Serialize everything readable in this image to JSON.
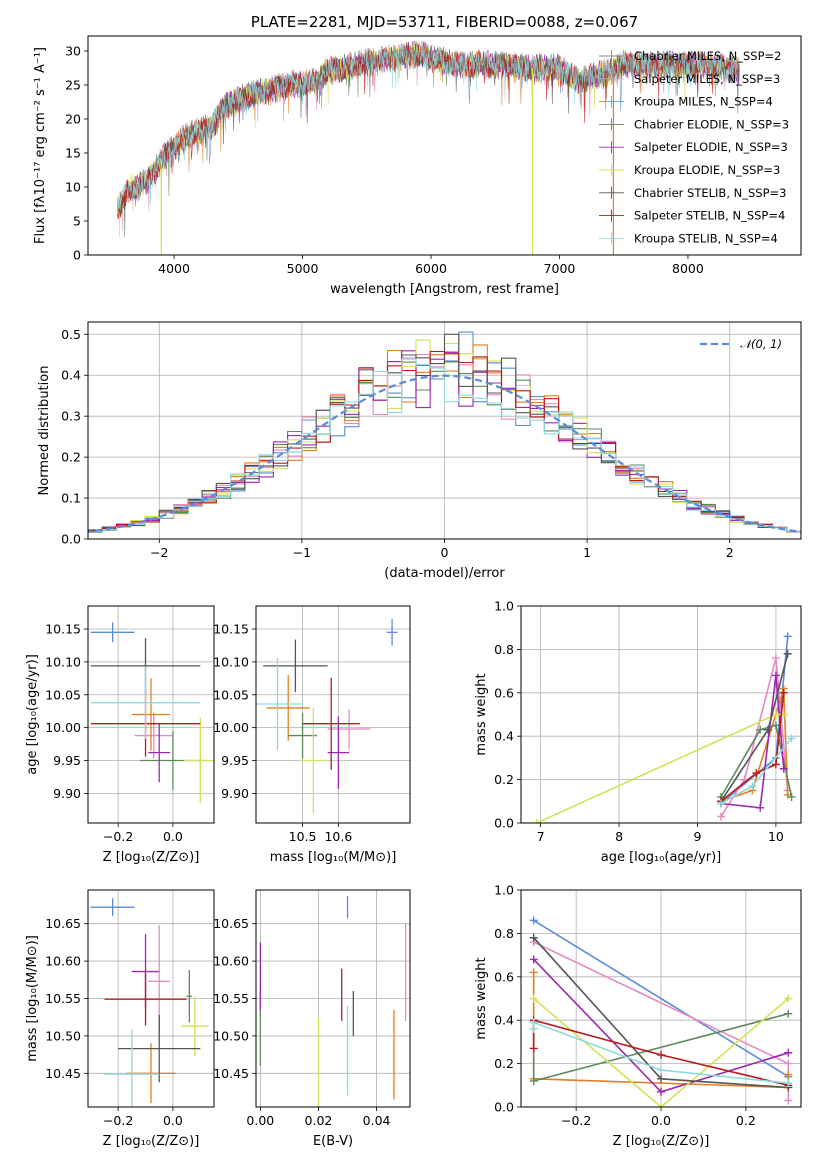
{
  "colors": [
    "#5b8bd9",
    "#e58ac3",
    "#e67e22",
    "#5c8a5c",
    "#9c27b0",
    "#d4e157",
    "#555555",
    "#b71c1c",
    "#8dd9e0"
  ],
  "legend_gray_colors": [
    "#888888",
    "#b8a8cc",
    "#e67e22",
    "#5c8a5c",
    "#9c27b0",
    "#d4e157",
    "#555555",
    "#b71c1c",
    "#8dd9e0"
  ],
  "chart_data": [
    {
      "id": "spectrum",
      "type": "line",
      "title": "PLATE=2281, MJD=53711, FIBERID=0088, z=0.067",
      "xlabel": "wavelength [Angstrom, rest frame]",
      "ylabel": "Flux [fλ10⁻¹⁷ erg cm⁻² s⁻¹ A⁻¹]",
      "xlim": [
        3330,
        8880
      ],
      "ylim": [
        0,
        32.2
      ],
      "xticks": [
        4000,
        5000,
        6000,
        7000,
        8000
      ],
      "yticks": [
        0,
        5,
        10,
        15,
        20,
        25,
        30
      ],
      "grid": false,
      "legend_position": "upper right",
      "series": [
        {
          "name": "Chabrier MILES, N_SSP=2"
        },
        {
          "name": "Salpeter MILES, N_SSP=3"
        },
        {
          "name": "Kroupa MILES, N_SSP=4"
        },
        {
          "name": "Chabrier ELODIE, N_SSP=3"
        },
        {
          "name": "Salpeter ELODIE, N_SSP=3"
        },
        {
          "name": "Kroupa ELODIE, N_SSP=3"
        },
        {
          "name": "Chabrier STELIB, N_SSP=3"
        },
        {
          "name": "Salpeter STELIB, N_SSP=4"
        },
        {
          "name": "Kroupa STELIB, N_SSP=4"
        }
      ],
      "continuum": [
        [
          3560,
          6.5
        ],
        [
          3650,
          9.5
        ],
        [
          3800,
          11
        ],
        [
          3900,
          14
        ],
        [
          4000,
          16
        ],
        [
          4150,
          18
        ],
        [
          4300,
          19
        ],
        [
          4400,
          22
        ],
        [
          4600,
          23.5
        ],
        [
          4900,
          25
        ],
        [
          5100,
          25.5
        ],
        [
          5200,
          27
        ],
        [
          5400,
          28
        ],
        [
          5700,
          29
        ],
        [
          5900,
          29.5
        ],
        [
          6200,
          28
        ],
        [
          6500,
          28
        ],
        [
          6800,
          27.5
        ],
        [
          7000,
          27.5
        ],
        [
          7150,
          25.5
        ],
        [
          7400,
          27
        ],
        [
          7500,
          28
        ],
        [
          7700,
          28
        ],
        [
          8000,
          28
        ],
        [
          8200,
          28
        ],
        [
          8400,
          27
        ]
      ],
      "spikes": [
        [
          3900,
          0
        ],
        [
          6790,
          0
        ],
        [
          7420,
          0
        ]
      ]
    },
    {
      "id": "residuals",
      "type": "histogram",
      "xlabel": "(data-model)/error",
      "ylabel": "Normed distribution",
      "xlim": [
        -2.5,
        2.5
      ],
      "ylim": [
        0,
        0.53
      ],
      "xticks": [
        -2,
        -1,
        0,
        1,
        2
      ],
      "xtick_labels": [
        "−2",
        "−1",
        "0",
        "1",
        "2"
      ],
      "yticks": [
        0,
        0.1,
        0.2,
        0.3,
        0.4,
        0.5
      ],
      "ytick_labels": [
        "0.0",
        "0.1",
        "0.2",
        "0.3",
        "0.4",
        "0.5"
      ],
      "grid": true,
      "bin_width": 0.1,
      "legend": "𝒩(0, 1)",
      "legend_position": "upper right",
      "reference_curve": "normal(0,1), dashed"
    },
    {
      "id": "age_vs_Z",
      "type": "scatter",
      "xlabel": "Z [log₁₀(Z/Z⊙)]",
      "ylabel": "age  [log₁₀(age/yr)]",
      "xlim": [
        -0.31,
        0.15
      ],
      "ylim": [
        9.855,
        10.185
      ],
      "xticks": [
        -0.2,
        0.0
      ],
      "xtick_labels": [
        "−0.2",
        "0.0"
      ],
      "yticks": [
        9.9,
        9.95,
        10.0,
        10.05,
        10.1,
        10.15
      ],
      "ytick_labels": [
        "9.90",
        "9.95",
        "10.00",
        "10.05",
        "10.10",
        "10.15"
      ],
      "grid": true,
      "points": [
        {
          "x": -0.22,
          "xerr": 0.08,
          "y": 10.145,
          "yerr": 0.015
        },
        {
          "x": -0.07,
          "xerr": 0.07,
          "y": 9.988,
          "yerr": 0.035
        },
        {
          "x": -0.08,
          "xerr": 0.07,
          "y": 10.02,
          "yerr": 0.055
        },
        {
          "x": 0.0,
          "xerr": 0.12,
          "y": 9.95,
          "yerr": 0.045
        },
        {
          "x": -0.05,
          "xerr": 0.04,
          "y": 9.962,
          "yerr": 0.045
        },
        {
          "x": 0.1,
          "xerr": 0.06,
          "y": 9.95,
          "yerr": 0.065
        },
        {
          "x": -0.1,
          "xerr": 0.2,
          "y": 10.094,
          "yerr": 0.042
        },
        {
          "x": -0.1,
          "xerr": 0.2,
          "y": 10.006,
          "yerr": 0.05
        },
        {
          "x": -0.1,
          "xerr": 0.2,
          "y": 10.038,
          "yerr": 0.055
        }
      ]
    },
    {
      "id": "age_vs_mass",
      "type": "scatter",
      "xlabel": "mass [log₁₀(M/M⊙)]",
      "ylabel": "",
      "xlim": [
        10.37,
        10.8
      ],
      "ylim": [
        9.855,
        10.185
      ],
      "xticks": [
        10.5,
        10.6
      ],
      "xtick_labels": [
        "10.5",
        "10.6"
      ],
      "yticks": [
        9.9,
        9.95,
        10.0,
        10.05,
        10.1,
        10.15
      ],
      "ytick_labels": [
        "9.90",
        "9.95",
        "10.00",
        "10.05",
        "10.10",
        "10.15"
      ],
      "grid": true,
      "points": [
        {
          "x": 10.75,
          "xerr": 0.015,
          "y": 10.145,
          "yerr": 0.02
        },
        {
          "x": 10.63,
          "xerr": 0.06,
          "y": 9.998,
          "yerr": 0.03
        },
        {
          "x": 10.46,
          "xerr": 0.06,
          "y": 10.03,
          "yerr": 0.05
        },
        {
          "x": 10.5,
          "xerr": 0.04,
          "y": 9.988,
          "yerr": 0.035
        },
        {
          "x": 10.6,
          "xerr": 0.03,
          "y": 9.962,
          "yerr": 0.055
        },
        {
          "x": 10.53,
          "xerr": 0.04,
          "y": 9.95,
          "yerr": 0.08
        },
        {
          "x": 10.48,
          "xerr": 0.09,
          "y": 10.094,
          "yerr": 0.04
        },
        {
          "x": 10.58,
          "xerr": 0.08,
          "y": 10.006,
          "yerr": 0.07
        },
        {
          "x": 10.43,
          "xerr": 0.07,
          "y": 10.036,
          "yerr": 0.07
        }
      ]
    },
    {
      "id": "massweight_vs_age",
      "type": "line",
      "xlabel": "age  [log₁₀(age/yr)]",
      "ylabel": "mass weight",
      "xlim": [
        6.75,
        10.32
      ],
      "ylim": [
        0,
        1
      ],
      "xticks": [
        7,
        8,
        9,
        10
      ],
      "yticks": [
        0,
        0.2,
        0.4,
        0.6,
        0.8,
        1.0
      ],
      "ytick_labels": [
        "0.0",
        "0.2",
        "0.4",
        "0.6",
        "0.8",
        "1.0"
      ],
      "grid": true,
      "series": [
        {
          "x": [
            9.3,
            10.0,
            10.15
          ],
          "y": [
            0.09,
            0.3,
            0.86
          ]
        },
        {
          "x": [
            9.3,
            9.6,
            10.0,
            10.15
          ],
          "y": [
            0.03,
            0.2,
            0.76,
            0.15
          ]
        },
        {
          "x": [
            9.3,
            9.7,
            10.1,
            10.15
          ],
          "y": [
            0.1,
            0.15,
            0.62,
            0.13
          ]
        },
        {
          "x": [
            9.3,
            9.8,
            10.0,
            10.2
          ],
          "y": [
            0.12,
            0.43,
            0.45,
            0.12
          ]
        },
        {
          "x": [
            9.3,
            9.8,
            10.0,
            10.1
          ],
          "y": [
            0.09,
            0.07,
            0.68,
            0.25
          ]
        },
        {
          "x": [
            6.95,
            10.0,
            10.1
          ],
          "y": [
            0.0,
            0.5,
            0.5
          ]
        },
        {
          "x": [
            9.3,
            9.9,
            10.15
          ],
          "y": [
            0.1,
            0.43,
            0.78
          ]
        },
        {
          "x": [
            9.3,
            9.75,
            10.0,
            10.1
          ],
          "y": [
            0.1,
            0.23,
            0.27,
            0.6
          ]
        },
        {
          "x": [
            9.3,
            9.7,
            10.2
          ],
          "y": [
            0.09,
            0.17,
            0.39
          ]
        }
      ]
    },
    {
      "id": "mass_vs_Z",
      "type": "scatter",
      "xlabel": "Z [log₁₀(Z/Z⊙)]",
      "ylabel": "mass [log₁₀(M/M⊙)]",
      "xlim": [
        -0.31,
        0.15
      ],
      "ylim": [
        10.405,
        10.695
      ],
      "xticks": [
        -0.2,
        0.0
      ],
      "xtick_labels": [
        "−0.2",
        "0.0"
      ],
      "yticks": [
        10.45,
        10.5,
        10.55,
        10.6,
        10.65
      ],
      "ytick_labels": [
        "10.45",
        "10.50",
        "10.55",
        "10.60",
        "10.65"
      ],
      "grid": true,
      "points": [
        {
          "x": -0.22,
          "xerr": 0.08,
          "y": 10.672,
          "yerr": 0.012
        },
        {
          "x": -0.05,
          "xerr": 0.04,
          "y": 10.573,
          "yerr": 0.075
        },
        {
          "x": -0.08,
          "xerr": 0.09,
          "y": 10.45,
          "yerr": 0.04
        },
        {
          "x": 0.06,
          "xerr": 0.01,
          "y": 10.553,
          "yerr": 0.035
        },
        {
          "x": -0.1,
          "xerr": 0.05,
          "y": 10.586,
          "yerr": 0.05
        },
        {
          "x": 0.08,
          "xerr": 0.05,
          "y": 10.513,
          "yerr": 0.04
        },
        {
          "x": -0.05,
          "xerr": 0.15,
          "y": 10.483,
          "yerr": 0.045
        },
        {
          "x": -0.1,
          "xerr": 0.15,
          "y": 10.549,
          "yerr": 0.035
        },
        {
          "x": -0.15,
          "xerr": 0.1,
          "y": 10.449,
          "yerr": 0.06
        }
      ]
    },
    {
      "id": "mass_vs_EBV",
      "type": "scatter",
      "xlabel": "E(B-V)",
      "ylabel": "",
      "xlim": [
        -0.0015,
        0.0515
      ],
      "ylim": [
        10.405,
        10.695
      ],
      "xticks": [
        0.0,
        0.02,
        0.04
      ],
      "xtick_labels": [
        "0.00",
        "0.02",
        "0.04"
      ],
      "yticks": [
        10.45,
        10.5,
        10.55,
        10.6,
        10.65
      ],
      "ytick_labels": [
        "10.45",
        "10.50",
        "10.55",
        "10.60",
        "10.65"
      ],
      "grid": true,
      "points": [
        {
          "x": 0.03,
          "y": 10.672,
          "yerr": 0.015
        },
        {
          "x": 0.05,
          "y": 10.585,
          "yerr": 0.065
        },
        {
          "x": 0.046,
          "y": 10.475,
          "yerr": 0.06
        },
        {
          "x": 0.0,
          "y": 10.51,
          "yerr": 0.05
        },
        {
          "x": 0.0,
          "y": 10.58,
          "yerr": 0.045
        },
        {
          "x": 0.02,
          "y": 10.455,
          "yerr": 0.07
        },
        {
          "x": 0.032,
          "y": 10.53,
          "yerr": 0.03
        },
        {
          "x": 0.028,
          "y": 10.555,
          "yerr": 0.035
        },
        {
          "x": 0.03,
          "y": 10.48,
          "yerr": 0.06
        }
      ]
    },
    {
      "id": "massweight_vs_Z",
      "type": "line",
      "xlabel": "Z [log₁₀(Z/Z⊙)]",
      "ylabel": "mass weight",
      "xlim": [
        -0.33,
        0.33
      ],
      "ylim": [
        0,
        1
      ],
      "xticks": [
        -0.2,
        0.0,
        0.2
      ],
      "xtick_labels": [
        "−0.2",
        "0.0",
        "0.2"
      ],
      "yticks": [
        0,
        0.2,
        0.4,
        0.6,
        0.8,
        1.0
      ],
      "ytick_labels": [
        "0.0",
        "0.2",
        "0.4",
        "0.6",
        "0.8",
        "1.0"
      ],
      "grid": true,
      "series": [
        {
          "x": [
            -0.3,
            0.3
          ],
          "y": [
            0.86,
            0.14
          ]
        },
        {
          "x": [
            -0.3,
            0.3,
            0.3
          ],
          "y": [
            0.76,
            0.2,
            0.03
          ]
        },
        {
          "x": [
            -0.3,
            -0.3,
            0.3,
            0.3
          ],
          "y": [
            0.62,
            0.13,
            0.09,
            0.15
          ]
        },
        {
          "x": [
            -0.3,
            -0.3,
            0.3
          ],
          "y": [
            0.39,
            0.12,
            0.43
          ]
        },
        {
          "x": [
            -0.3,
            0.0,
            0.3
          ],
          "y": [
            0.68,
            0.07,
            0.25
          ]
        },
        {
          "x": [
            -0.3,
            0.0,
            0.3
          ],
          "y": [
            0.5,
            0.0,
            0.5
          ]
        },
        {
          "x": [
            -0.3,
            0.0,
            0.3
          ],
          "y": [
            0.78,
            0.13,
            0.09
          ]
        },
        {
          "x": [
            -0.3,
            -0.3,
            0.0,
            0.3
          ],
          "y": [
            0.27,
            0.4,
            0.24,
            0.1
          ]
        },
        {
          "x": [
            -0.3,
            -0.3,
            0.0,
            0.3
          ],
          "y": [
            0.36,
            0.39,
            0.17,
            0.11
          ]
        }
      ]
    }
  ]
}
